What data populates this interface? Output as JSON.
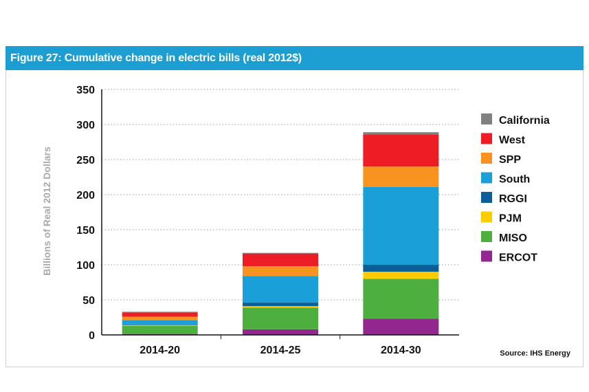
{
  "figure": {
    "title": "Figure 27: Cumulative change in electric bills (real 2012$)",
    "source": "Source: IHS Energy"
  },
  "colors": {
    "banner": "#1d9ed2",
    "California": "#808080",
    "West": "#ee1c25",
    "SPP": "#f7931e",
    "South": "#1a9fd8",
    "RGGI": "#0a5f99",
    "PJM": "#ffcc00",
    "MISO": "#4caf3e",
    "ERCOT": "#92278f"
  },
  "chart_data": {
    "type": "bar",
    "stacked": true,
    "title": "Figure 27: Cumulative change in electric bills (real 2012$)",
    "xlabel": "",
    "ylabel": "Billions of Real 2012 Dollars",
    "ylim": [
      0,
      350
    ],
    "yticks": [
      0,
      50,
      100,
      150,
      200,
      250,
      300,
      350
    ],
    "grid": true,
    "legend_position": "right",
    "categories": [
      "2014-20",
      "2014-25",
      "2014-30"
    ],
    "series": [
      {
        "name": "ERCOT",
        "values": [
          1,
          8,
          23
        ]
      },
      {
        "name": "MISO",
        "values": [
          12,
          31,
          57
        ]
      },
      {
        "name": "PJM",
        "values": [
          1,
          2,
          10
        ]
      },
      {
        "name": "RGGI",
        "values": [
          1,
          5,
          10
        ]
      },
      {
        "name": "South",
        "values": [
          6,
          38,
          111
        ]
      },
      {
        "name": "SPP",
        "values": [
          5,
          14,
          29
        ]
      },
      {
        "name": "West",
        "values": [
          6,
          18,
          46
        ]
      },
      {
        "name": "California",
        "values": [
          1,
          1,
          3
        ]
      }
    ],
    "legend_order": [
      "California",
      "West",
      "SPP",
      "South",
      "RGGI",
      "PJM",
      "MISO",
      "ERCOT"
    ]
  }
}
